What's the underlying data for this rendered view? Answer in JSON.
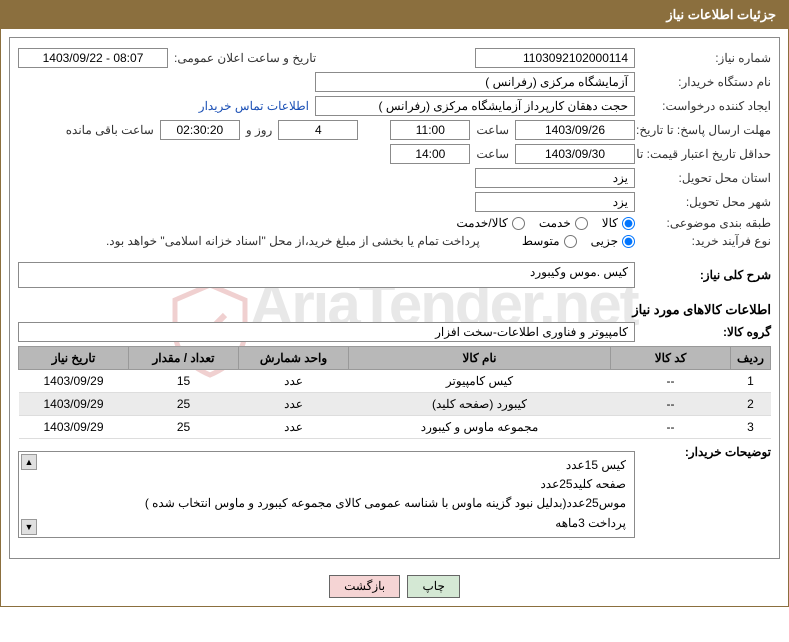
{
  "colors": {
    "header_bg": "#8b6f3e",
    "header_text": "#ffffff",
    "border": "#8b8b8b",
    "field_bg": "#ffffff",
    "link": "#1a4fb5",
    "th_bg": "#b8b8b8",
    "alt_row": "#ebebeb",
    "btn_green": "#d4e8d4",
    "btn_pink": "#f5d4d4",
    "watermark": "#e8e8e8"
  },
  "header": {
    "title": "جزئیات اطلاعات نیاز"
  },
  "watermark": {
    "text": "AriaTender.net"
  },
  "labels": {
    "need_number": "شماره نیاز:",
    "announce_datetime": "تاریخ و ساعت اعلان عمومی:",
    "buyer_org": "نام دستگاه خریدار:",
    "requester": "ایجاد کننده درخواست:",
    "buyer_contact": "اطلاعات تماس خریدار",
    "response_deadline": "مهلت ارسال پاسخ: تا تاریخ:",
    "time": "ساعت",
    "days_and": "روز و",
    "time_remaining": "ساعت باقی مانده",
    "validity_deadline": "حداقل تاریخ اعتبار قیمت: تا تاریخ:",
    "delivery_province": "استان محل تحویل:",
    "delivery_city": "شهر محل تحویل:",
    "category": "طبقه بندی موضوعی:",
    "purchase_type": "نوع فرآیند خرید:",
    "purchase_note": "پرداخت تمام یا بخشی از مبلغ خرید،از محل \"اسناد خزانه اسلامی\" خواهد بود.",
    "general_desc": "شرح کلی نیاز:",
    "goods_info_heading": "اطلاعات کالاهای مورد نیاز",
    "goods_group": "گروه کالا:",
    "buyer_notes": "توضیحات خریدار:"
  },
  "values": {
    "need_number": "1103092102000114",
    "announce_datetime": "1403/09/22 - 08:07",
    "buyer_org": "آزمایشگاه مرکزی (رفرانس )",
    "requester": "حجت دهقان کارپرداز آزمایشگاه مرکزی (رفرانس )",
    "response_date": "1403/09/26",
    "response_time": "11:00",
    "days_remaining": "4",
    "countdown": "02:30:20",
    "validity_date": "1403/09/30",
    "validity_time": "14:00",
    "delivery_province": "یزد",
    "delivery_city": "یزد",
    "general_desc": "کیس .موس وکیبورد",
    "goods_group": "کامپیوتر و فناوری اطلاعات-سخت افزار"
  },
  "radios": {
    "category": {
      "options": [
        {
          "label": "کالا",
          "checked": true
        },
        {
          "label": "خدمت",
          "checked": false
        },
        {
          "label": "کالا/خدمت",
          "checked": false
        }
      ]
    },
    "purchase_type": {
      "options": [
        {
          "label": "جزیی",
          "checked": true
        },
        {
          "label": "متوسط",
          "checked": false
        }
      ]
    }
  },
  "table": {
    "headers": [
      "ردیف",
      "کد کالا",
      "نام کالا",
      "واحد شمارش",
      "تعداد / مقدار",
      "تاریخ نیاز"
    ],
    "col_widths": [
      "40px",
      "120px",
      "auto",
      "110px",
      "110px",
      "110px"
    ],
    "rows": [
      {
        "idx": "1",
        "code": "--",
        "name": "کیس کامپیوتر",
        "unit": "عدد",
        "qty": "15",
        "date": "1403/09/29"
      },
      {
        "idx": "2",
        "code": "--",
        "name": "کیبورد (صفحه کلید)",
        "unit": "عدد",
        "qty": "25",
        "date": "1403/09/29"
      },
      {
        "idx": "3",
        "code": "--",
        "name": "مجموعه ماوس و کیبورد",
        "unit": "عدد",
        "qty": "25",
        "date": "1403/09/29"
      }
    ]
  },
  "buyer_notes": {
    "line1": "کیس 15عدد",
    "line2": "صفحه کلید25عدد",
    "line3": "موس25عدد(بدلیل نبود گزینه ماوس با شناسه عمومی کالای مجموعه کیبورد و ماوس انتخاب شده )",
    "line4": "پرداخت 3ماهه"
  },
  "buttons": {
    "print": "چاپ",
    "back": "بازگشت"
  }
}
